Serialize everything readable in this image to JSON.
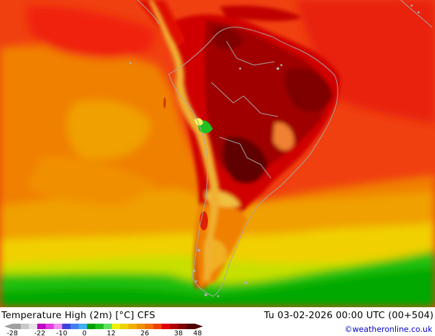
{
  "footer": {
    "title": "Temperature High (2m) [°C] CFS",
    "datetime": "Tu 03-02-2026 00:00 UTC (00+504)",
    "credit": "©weatheronline.co.uk"
  },
  "legend": {
    "ticks": [
      "-28",
      "-22",
      "-10",
      "0",
      "12",
      "26",
      "38",
      "48"
    ],
    "colors": [
      "#a0a0a0",
      "#c8c8c8",
      "#e6e6e6",
      "#c000c0",
      "#e040e0",
      "#f090f0",
      "#4040e0",
      "#4080f0",
      "#40b0f0",
      "#00a000",
      "#20c020",
      "#60e060",
      "#f0f000",
      "#f0d000",
      "#f0b000",
      "#f09000",
      "#f07000",
      "#f04000",
      "#e00000",
      "#b00000",
      "#800000",
      "#500000"
    ]
  },
  "map": {
    "palette": {
      "ocean_warm": "#f03010",
      "ocean_orange": "#f08000",
      "ocean_yellow": "#f0c000",
      "land_hot": "#c00000",
      "land_hottest": "#600000",
      "andes": "#f0b030",
      "cool_green": "#00c000",
      "coast": "#a0a0a0"
    }
  }
}
